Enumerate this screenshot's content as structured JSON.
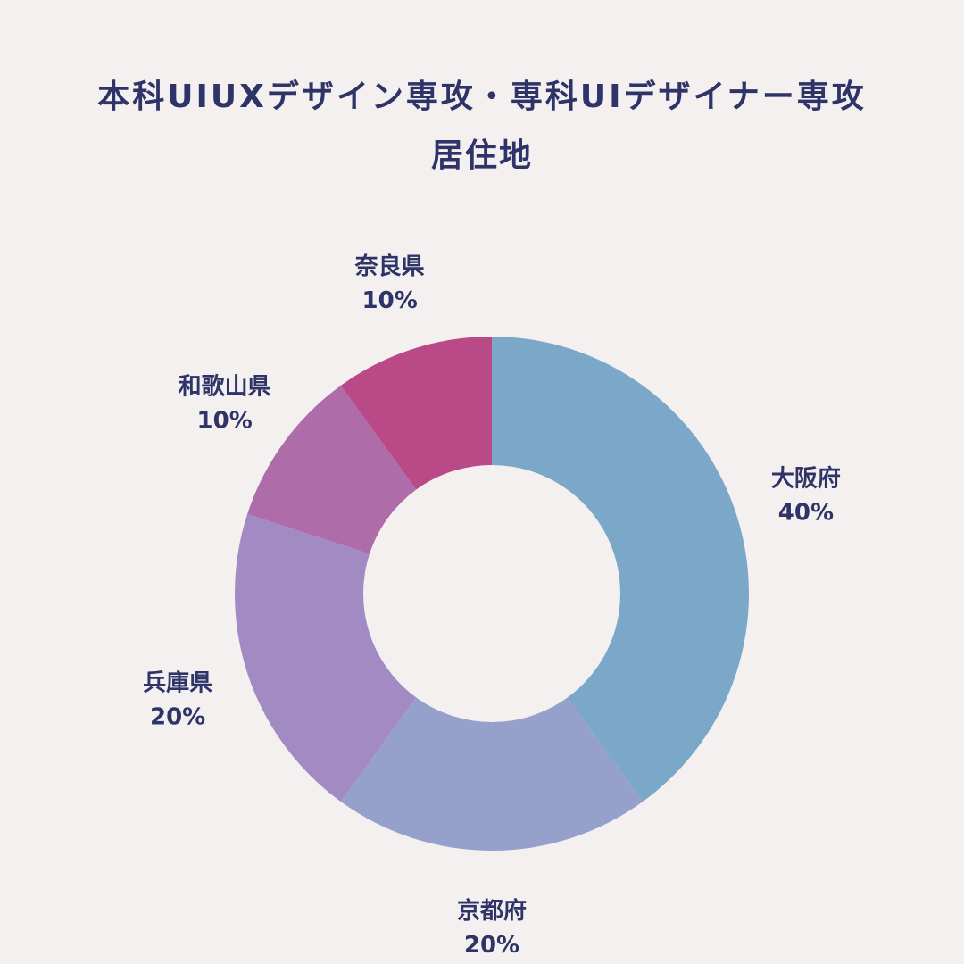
{
  "header": {
    "title": "本科UIUXデザイン専攻・専科UIデザイナー専攻",
    "subtitle": "居住地"
  },
  "chart_data": {
    "type": "pie",
    "variant": "donut",
    "title": "本科UIUXデザイン専攻・専科UIデザイナー専攻",
    "subtitle": "居住地",
    "start": "top, clockwise",
    "categories": [
      "大阪府",
      "京都府",
      "兵庫県",
      "和歌山県",
      "奈良県"
    ],
    "values": [
      40,
      20,
      20,
      10,
      10
    ],
    "value_labels": [
      "40%",
      "20%",
      "20%",
      "10%",
      "10%"
    ],
    "colors": [
      "#7ba7c8",
      "#95a0cb",
      "#a28bc3",
      "#ae6da9",
      "#b94a87"
    ],
    "legend": "labels outside slices"
  }
}
